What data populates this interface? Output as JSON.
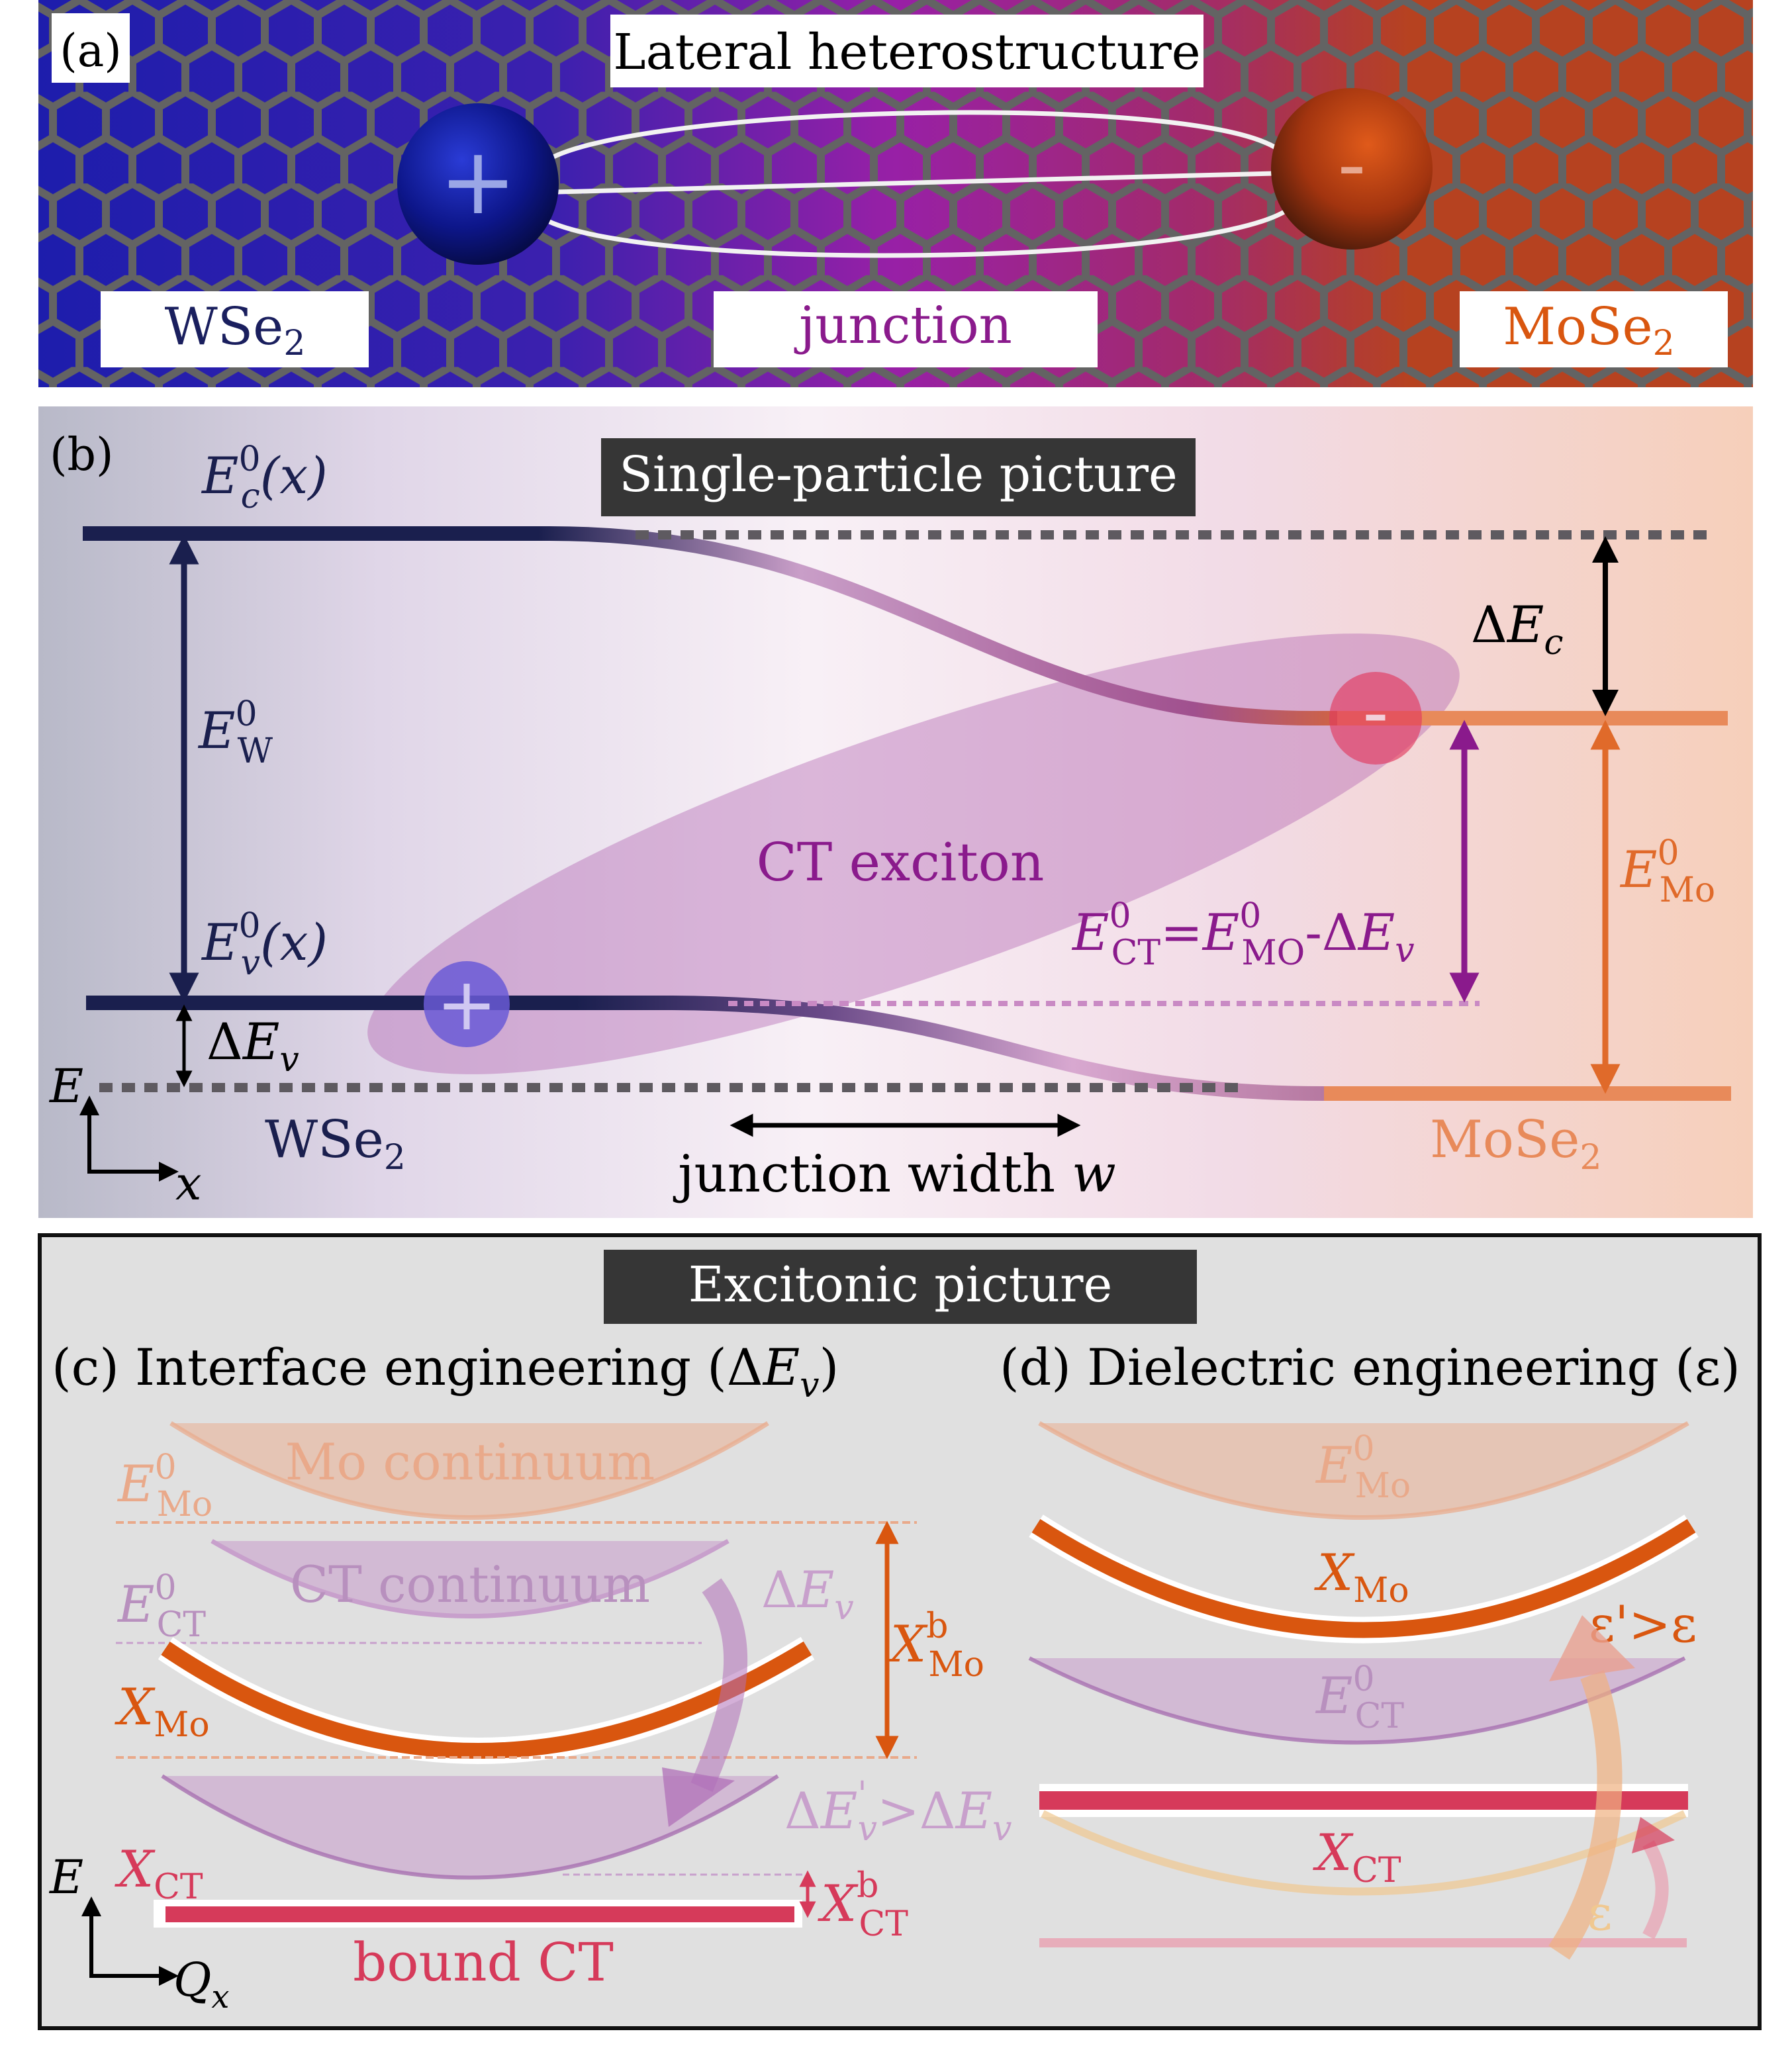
{
  "panel_a": {
    "tag": "(a)",
    "title": "Lateral heterostructure",
    "hole_symbol": "+",
    "electron_symbol": "-",
    "label_left_base": "WSe",
    "label_left_sub": "2",
    "label_mid": "junction",
    "label_right_base": "MoSe",
    "label_right_sub": "2",
    "colors": {
      "w": "#1c1cae",
      "junction": "#9a1fa8",
      "mo": "#b8421f",
      "lattice_bg": "#636363"
    }
  },
  "panel_b": {
    "tag": "(b)",
    "title": "Single-particle picture",
    "ec_base": "E",
    "ec_sup": "0",
    "ec_sub": "c",
    "ec_arg": "(x)",
    "ev_base": "E",
    "ev_sup": "0",
    "ev_sub": "v",
    "ev_arg": "(x)",
    "ew_base": "E",
    "ew_sup": "0",
    "ew_sub": "W",
    "emo_base": "E",
    "emo_sup": "0",
    "emo_sub": "Mo",
    "dec_delta": "Δ",
    "dec_base": "E",
    "dec_sub": "c",
    "dev_delta": "Δ",
    "dev_base": "E",
    "dev_sub": "v",
    "ect_base": "E",
    "ect_sup": "0",
    "ect_sub": "CT",
    "ect_eq": "=",
    "ect_mo_base": "E",
    "ect_mo_sup": "0",
    "ect_mo_sub": "MO",
    "ect_minus": "-Δ",
    "ect_dev_base": "E",
    "ect_dev_sub": "v",
    "ct_label": "CT exciton",
    "axis_e": "E",
    "axis_x": "x",
    "w_label_base": "WSe",
    "w_label_sub": "2",
    "mo_label_base": "MoSe",
    "mo_label_sub": "2",
    "junction_text": "junction width ",
    "junction_var": "w",
    "hole_symbol": "+",
    "electron_symbol": "-",
    "colors": {
      "navy": "#1a1f4e",
      "mo": "#e06a2a",
      "purple": "#8a1a8c",
      "electron": "#e23a60",
      "hole": "#6a5ad6"
    }
  },
  "excitonic": {
    "title": "Excitonic picture",
    "panel_c": {
      "heading_prefix": "(c) Interface engineering (Δ",
      "heading_var": "E",
      "heading_sub": "v",
      "heading_suffix": ")",
      "mo_continuum": "Mo continuum",
      "ct_continuum": "CT continuum",
      "emo_base": "E",
      "emo_sup": "0",
      "emo_sub": "Mo",
      "ect_base": "E",
      "ect_sup": "0",
      "ect_sub": "CT",
      "dev_delta": "Δ",
      "dev_base": "E",
      "dev_sub": "v",
      "xmo_base": "X",
      "xmo_sub": "Mo",
      "xmob_base": "X",
      "xmob_sup": "b",
      "xmob_sub": "Mo",
      "dev2_prefix": "Δ",
      "dev2_base": "E",
      "dev2_prime": "'",
      "dev2_sub": "v",
      "dev2_gt": ">Δ",
      "dev2_base2": "E",
      "dev2_sub2": "v",
      "xct_base": "X",
      "xct_sub": "CT",
      "xctb_base": "X",
      "xctb_sup": "b",
      "xctb_sub": "CT",
      "bound_ct": "bound CT",
      "axis_e": "E",
      "axis_q": "Q",
      "axis_q_sub": "x"
    },
    "panel_d": {
      "heading": "(d) Dielectric engineering (ε)",
      "emo_base": "E",
      "emo_sup": "0",
      "emo_sub": "Mo",
      "xmo_base": "X",
      "xmo_sub": "Mo",
      "eps_prime": "ε'>ε",
      "ect_base": "E",
      "ect_sup": "0",
      "ect_sub": "CT",
      "xct_base": "X",
      "xct_sub": "CT",
      "eps": "ε"
    },
    "colors": {
      "bg": "#e0e0e0",
      "mo_orange": "#d9560f",
      "ct_red": "#d63a5a",
      "ct_purple": "#9b5aa8",
      "light_orange": "#e9a98a"
    }
  }
}
